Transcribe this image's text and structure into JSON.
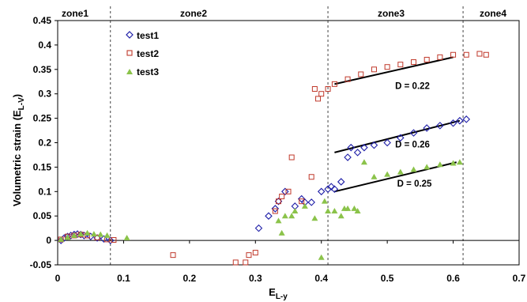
{
  "chart_data": {
    "type": "scatter",
    "xlabel": "E",
    "xlabel_sub": "L-y",
    "ylabel": "Volumetric strain (E",
    "ylabel_sub": "L-V",
    "ylabel_end": ")",
    "xlim": [
      0,
      0.7
    ],
    "ylim": [
      -0.05,
      0.45
    ],
    "x_ticks": [
      0,
      0.1,
      0.2,
      0.3,
      0.4,
      0.5,
      0.6,
      0.7
    ],
    "x_tick_labels": [
      "0",
      "0.1",
      "0.2",
      "0.3",
      "0.4",
      "0.5",
      "0.6",
      "0.7"
    ],
    "y_ticks": [
      -0.05,
      0,
      0.05,
      0.1,
      0.15,
      0.2,
      0.25,
      0.3,
      0.35,
      0.4,
      0.45
    ],
    "y_tick_labels": [
      "-0.05",
      "0",
      "0.05",
      "0.1",
      "0.15",
      "0.2",
      "0.25",
      "0.3",
      "0.35",
      "0.4",
      "0.45"
    ],
    "grid": false,
    "legend_position": "top-left",
    "zones": [
      {
        "label": "zone1",
        "x_start": 0,
        "x_end": 0.08
      },
      {
        "label": "zone2",
        "x_start": 0.08,
        "x_end": 0.41
      },
      {
        "label": "zone3",
        "x_start": 0.41,
        "x_end": 0.615
      },
      {
        "label": "zone4",
        "x_start": 0.615,
        "x_end": 0.7
      }
    ],
    "zone_boundaries": [
      0.08,
      0.41,
      0.615
    ],
    "series": [
      {
        "name": "test1",
        "marker": "diamond-open",
        "color": "#1f1fa8",
        "points": [
          [
            0.005,
            0.0
          ],
          [
            0.01,
            0.005
          ],
          [
            0.015,
            0.008
          ],
          [
            0.02,
            0.01
          ],
          [
            0.025,
            0.012
          ],
          [
            0.03,
            0.013
          ],
          [
            0.035,
            0.012
          ],
          [
            0.04,
            0.01
          ],
          [
            0.05,
            0.008
          ],
          [
            0.06,
            0.005
          ],
          [
            0.07,
            0.003
          ],
          [
            0.08,
            0.0
          ],
          [
            0.305,
            0.025
          ],
          [
            0.32,
            0.05
          ],
          [
            0.33,
            0.065
          ],
          [
            0.335,
            0.08
          ],
          [
            0.345,
            0.1
          ],
          [
            0.36,
            0.07
          ],
          [
            0.37,
            0.085
          ],
          [
            0.375,
            0.078
          ],
          [
            0.385,
            0.078
          ],
          [
            0.4,
            0.1
          ],
          [
            0.41,
            0.105
          ],
          [
            0.415,
            0.11
          ],
          [
            0.42,
            0.105
          ],
          [
            0.43,
            0.12
          ],
          [
            0.44,
            0.17
          ],
          [
            0.445,
            0.19
          ],
          [
            0.455,
            0.18
          ],
          [
            0.465,
            0.19
          ],
          [
            0.48,
            0.195
          ],
          [
            0.5,
            0.2
          ],
          [
            0.52,
            0.21
          ],
          [
            0.54,
            0.22
          ],
          [
            0.56,
            0.23
          ],
          [
            0.58,
            0.235
          ],
          [
            0.6,
            0.24
          ],
          [
            0.61,
            0.245
          ],
          [
            0.62,
            0.248
          ]
        ]
      },
      {
        "name": "test2",
        "marker": "square-open",
        "color": "#c0392b",
        "points": [
          [
            0.005,
            0.002
          ],
          [
            0.015,
            0.008
          ],
          [
            0.025,
            0.01
          ],
          [
            0.035,
            0.012
          ],
          [
            0.045,
            0.01
          ],
          [
            0.06,
            0.006
          ],
          [
            0.075,
            0.002
          ],
          [
            0.085,
            0.001
          ],
          [
            0.175,
            -0.03
          ],
          [
            0.27,
            -0.045
          ],
          [
            0.285,
            -0.045
          ],
          [
            0.29,
            -0.03
          ],
          [
            0.3,
            -0.025
          ],
          [
            0.33,
            0.06
          ],
          [
            0.335,
            0.08
          ],
          [
            0.34,
            0.09
          ],
          [
            0.35,
            0.1
          ],
          [
            0.355,
            0.17
          ],
          [
            0.37,
            0.08
          ],
          [
            0.385,
            0.13
          ],
          [
            0.39,
            0.31
          ],
          [
            0.395,
            0.29
          ],
          [
            0.4,
            0.3
          ],
          [
            0.41,
            0.31
          ],
          [
            0.42,
            0.32
          ],
          [
            0.44,
            0.33
          ],
          [
            0.46,
            0.34
          ],
          [
            0.48,
            0.35
          ],
          [
            0.5,
            0.355
          ],
          [
            0.52,
            0.36
          ],
          [
            0.54,
            0.365
          ],
          [
            0.56,
            0.37
          ],
          [
            0.58,
            0.375
          ],
          [
            0.6,
            0.38
          ],
          [
            0.62,
            0.38
          ],
          [
            0.64,
            0.382
          ],
          [
            0.65,
            0.38
          ]
        ]
      },
      {
        "name": "test3",
        "marker": "triangle-filled",
        "color": "#8bc34a",
        "points": [
          [
            0.005,
            0.002
          ],
          [
            0.015,
            0.006
          ],
          [
            0.025,
            0.01
          ],
          [
            0.035,
            0.013
          ],
          [
            0.045,
            0.015
          ],
          [
            0.055,
            0.013
          ],
          [
            0.065,
            0.012
          ],
          [
            0.075,
            0.01
          ],
          [
            0.105,
            0.005
          ],
          [
            0.335,
            0.04
          ],
          [
            0.345,
            0.05
          ],
          [
            0.355,
            0.05
          ],
          [
            0.36,
            0.06
          ],
          [
            0.34,
            0.015
          ],
          [
            0.375,
            0.07
          ],
          [
            0.39,
            0.045
          ],
          [
            0.4,
            -0.035
          ],
          [
            0.405,
            0.08
          ],
          [
            0.41,
            0.06
          ],
          [
            0.42,
            0.06
          ],
          [
            0.43,
            0.05
          ],
          [
            0.435,
            0.065
          ],
          [
            0.44,
            0.065
          ],
          [
            0.45,
            0.065
          ],
          [
            0.455,
            0.06
          ],
          [
            0.465,
            0.16
          ],
          [
            0.48,
            0.13
          ],
          [
            0.5,
            0.135
          ],
          [
            0.52,
            0.14
          ],
          [
            0.54,
            0.145
          ],
          [
            0.56,
            0.15
          ],
          [
            0.58,
            0.155
          ],
          [
            0.6,
            0.158
          ],
          [
            0.61,
            0.16
          ]
        ]
      }
    ],
    "fit_lines": [
      {
        "series": "test2",
        "label": "D = 0.22",
        "x": [
          0.42,
          0.6
        ],
        "y": [
          0.32,
          0.375
        ],
        "label_x": 0.512,
        "label_y": 0.31
      },
      {
        "series": "test1",
        "label": "D = 0.26",
        "x": [
          0.42,
          0.61
        ],
        "y": [
          0.18,
          0.245
        ],
        "label_x": 0.512,
        "label_y": 0.19
      },
      {
        "series": "test3",
        "label": "D = 0.25",
        "x": [
          0.42,
          0.605
        ],
        "y": [
          0.1,
          0.16
        ],
        "label_x": 0.515,
        "label_y": 0.11
      }
    ]
  }
}
